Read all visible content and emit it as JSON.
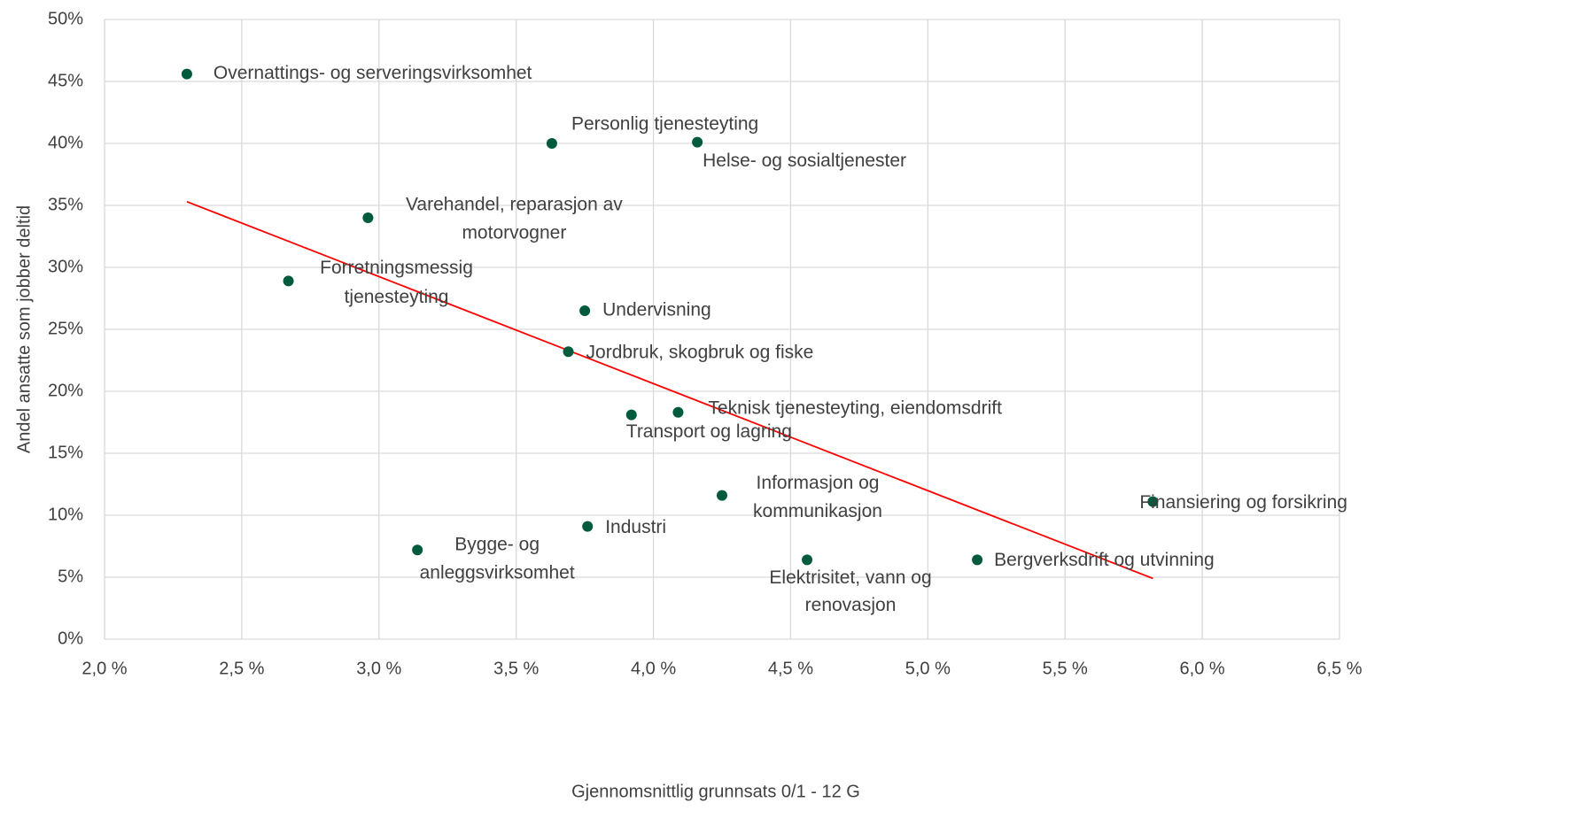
{
  "chart_data": {
    "type": "scatter",
    "x_label": "Gjennomsnittlig grunnsats 0/1 - 12 G",
    "y_label": "Andel ansatte som jobber deltid",
    "color": "#005a3c",
    "grid": true,
    "xlim": [
      2.0,
      6.5
    ],
    "ylim": [
      0,
      50
    ],
    "xticks": [
      {
        "value": 2.0,
        "label": "2,0 %"
      },
      {
        "value": 2.5,
        "label": "2,5 %"
      },
      {
        "value": 3.0,
        "label": "3,0 %"
      },
      {
        "value": 3.5,
        "label": "3,5 %"
      },
      {
        "value": 4.0,
        "label": "4,0 %"
      },
      {
        "value": 4.5,
        "label": "4,5 %"
      },
      {
        "value": 5.0,
        "label": "5,0 %"
      },
      {
        "value": 5.5,
        "label": "5,5 %"
      },
      {
        "value": 6.0,
        "label": "6,0 %"
      },
      {
        "value": 6.5,
        "label": "6,5 %"
      }
    ],
    "yticks": [
      {
        "value": 0,
        "label": "0%"
      },
      {
        "value": 5,
        "label": "5%"
      },
      {
        "value": 10,
        "label": "10%"
      },
      {
        "value": 15,
        "label": "15%"
      },
      {
        "value": 20,
        "label": "20%"
      },
      {
        "value": 25,
        "label": "25%"
      },
      {
        "value": 30,
        "label": "30%"
      },
      {
        "value": 35,
        "label": "35%"
      },
      {
        "value": 40,
        "label": "40%"
      },
      {
        "value": 45,
        "label": "45%"
      },
      {
        "value": 50,
        "label": "50%"
      }
    ],
    "labels": [
      [
        "Overnattings- og serveringsvirksomhet"
      ],
      [
        "Personlig tjenesteyting"
      ],
      [
        "Helse- og sosialtjenester"
      ],
      [
        "Varehandel, reparasjon av",
        "motorvogner"
      ],
      [
        "Forretningsmessig",
        "tjenesteyting"
      ],
      [
        "Undervisning"
      ],
      [
        "Jordbruk, skogbruk og fiske"
      ],
      [
        "Transport og lagring"
      ],
      [
        "Teknisk tjenesteyting, eiendomsdrift"
      ],
      [
        "Informasjon og",
        "kommunikasjon"
      ],
      [
        "Finansiering og forsikring"
      ],
      [
        "Industri"
      ],
      [
        "Bygge- og",
        "anleggsvirksomhet"
      ],
      [
        "Elektrisitet, vann og",
        "renovasjon"
      ],
      [
        "Bergverksdrift og utvinning"
      ]
    ],
    "x": [
      2.3,
      3.63,
      4.16,
      2.96,
      2.67,
      3.75,
      3.69,
      3.92,
      4.09,
      4.25,
      5.82,
      3.76,
      3.14,
      4.56,
      5.18
    ],
    "values": [
      45.6,
      40.0,
      40.1,
      34.0,
      28.9,
      26.5,
      23.2,
      18.1,
      18.3,
      11.6,
      11.1,
      9.1,
      7.2,
      6.4,
      6.4
    ],
    "trendline": {
      "x": [
        2.3,
        5.82
      ],
      "values": [
        35.3,
        4.9
      ],
      "color": "#ff0000"
    }
  }
}
